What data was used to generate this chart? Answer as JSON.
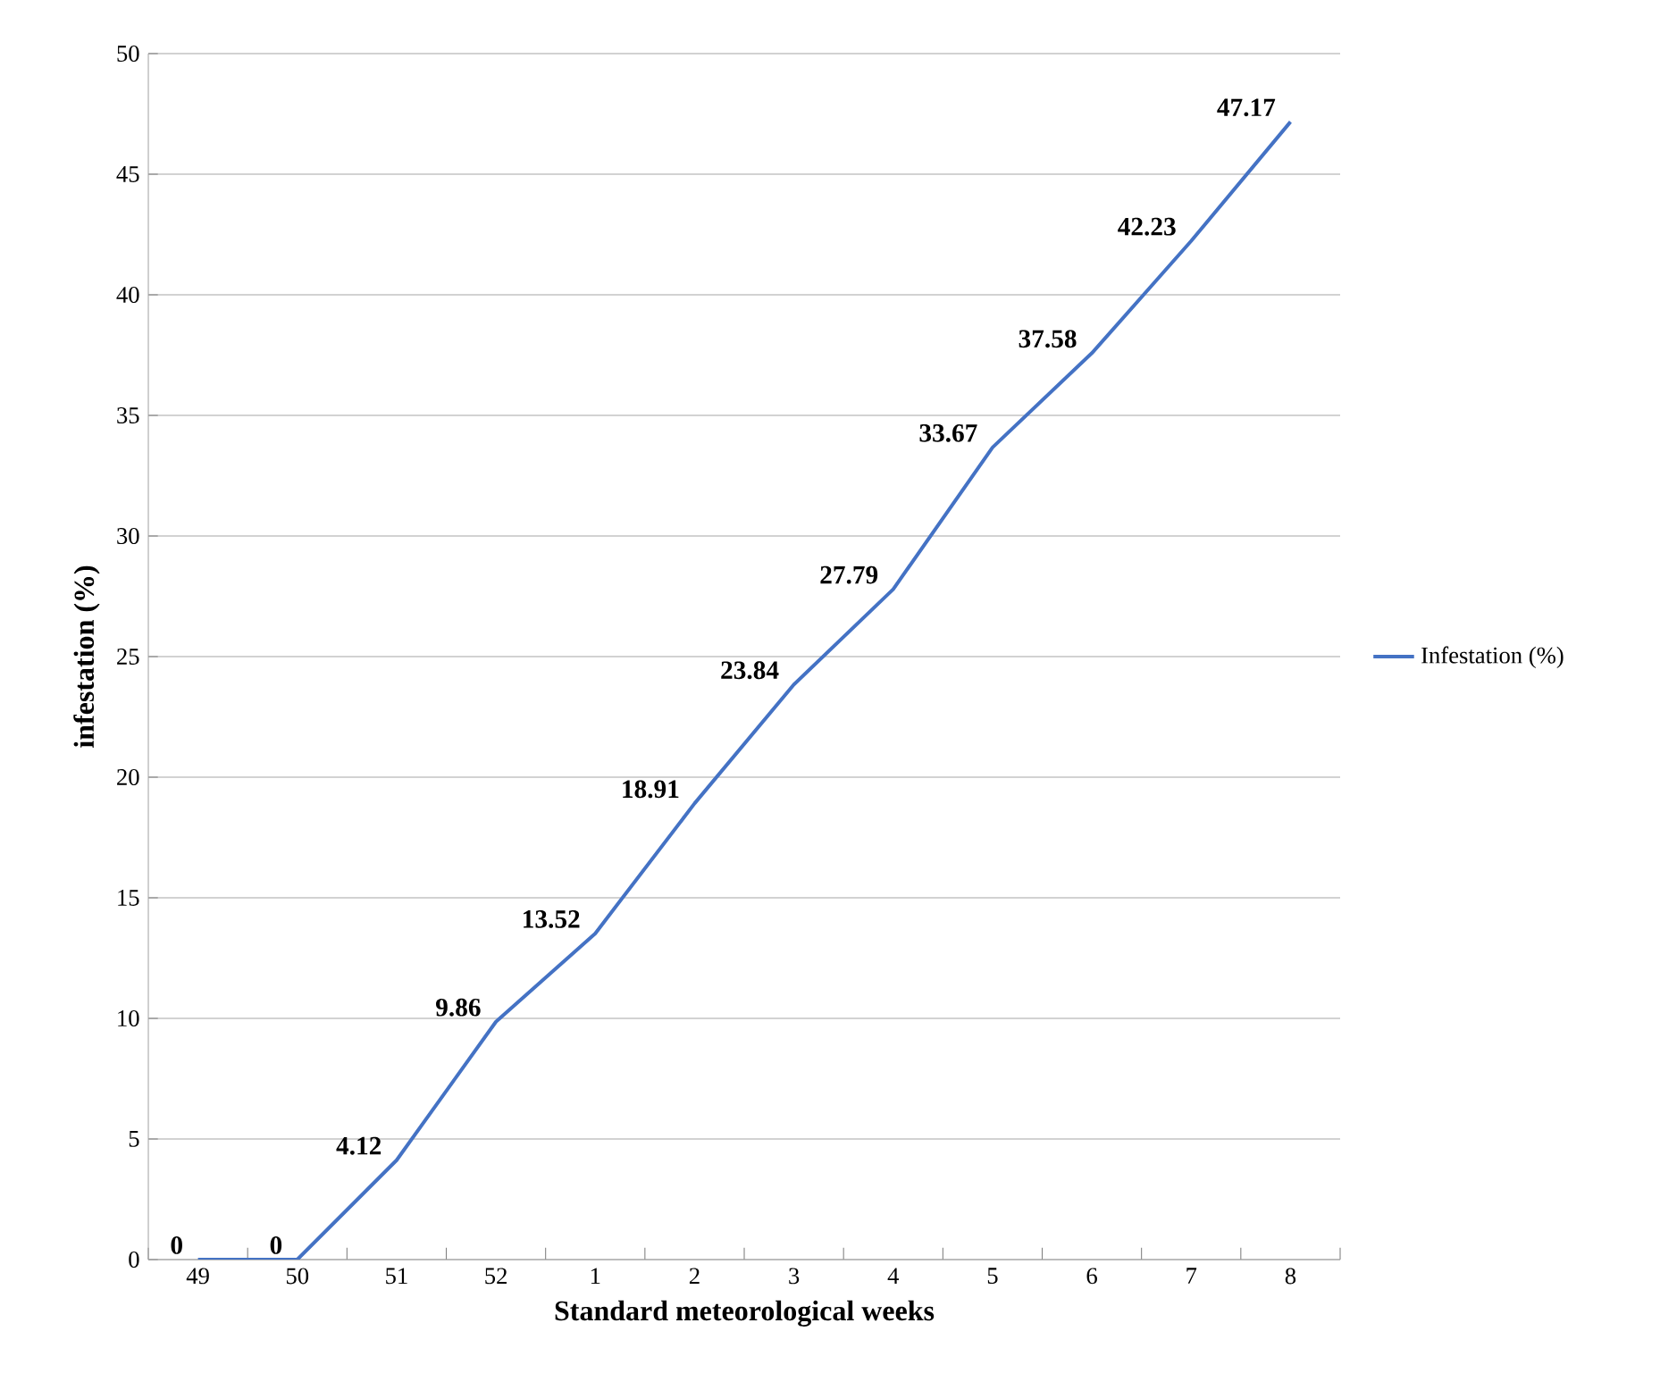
{
  "chart_data": {
    "type": "line",
    "categories": [
      "49",
      "50",
      "51",
      "52",
      "1",
      "2",
      "3",
      "4",
      "5",
      "6",
      "7",
      "8"
    ],
    "series": [
      {
        "name": "Infestation (%)",
        "color": "#4472c4",
        "values": [
          0,
          0,
          4.12,
          9.86,
          13.52,
          18.91,
          23.84,
          27.79,
          33.67,
          37.58,
          42.23,
          47.17
        ]
      }
    ],
    "xlabel": "Standard meteorological weeks",
    "ylabel": "infestation (%)",
    "ylim": [
      0,
      50
    ],
    "yticks": [
      0,
      5,
      10,
      15,
      20,
      25,
      30,
      35,
      40,
      45,
      50
    ],
    "grid": "y",
    "legend": "right",
    "data_labels": true,
    "marker": "none",
    "line_style": "solid"
  }
}
